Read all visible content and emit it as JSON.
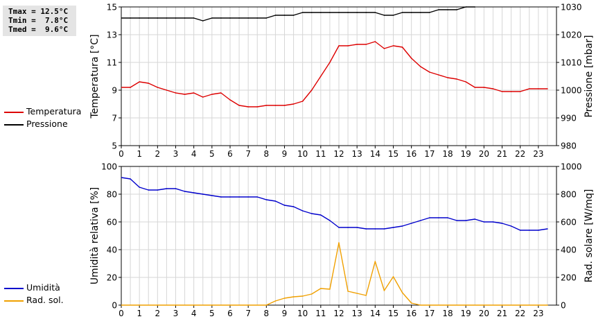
{
  "stats": {
    "tmax": "Tmax = 12.5°C",
    "tmin": "Tmin =  7.8°C",
    "tmed": "Tmed =  9.6°C"
  },
  "legend_top": [
    {
      "label": "Temperatura",
      "color": "#dd0000"
    },
    {
      "label": "Pressione",
      "color": "#000000"
    }
  ],
  "legend_bottom": [
    {
      "label": "Umidità",
      "color": "#0000cc"
    },
    {
      "label": "Rad. sol.",
      "color": "#f0a000"
    }
  ],
  "chart_data": [
    {
      "type": "line",
      "ylabel": "Temperatura [°C]",
      "y2label": "Pressione [mbar]",
      "xlim": [
        0,
        24
      ],
      "ylim": [
        5,
        15
      ],
      "y2lim": [
        980,
        1030
      ],
      "xticks": [
        "0",
        "1",
        "2",
        "3",
        "4",
        "5",
        "6",
        "7",
        "8",
        "9",
        "10",
        "11",
        "12",
        "13",
        "14",
        "15",
        "16",
        "17",
        "18",
        "19",
        "20",
        "21",
        "22",
        "23"
      ],
      "yticks": [
        "5",
        "7",
        "9",
        "11",
        "13",
        "15"
      ],
      "y2ticks": [
        "980",
        "990",
        "1000",
        "1010",
        "1020",
        "1030"
      ],
      "grid": true,
      "series": [
        {
          "name": "Temperatura",
          "axis": "left",
          "color": "#dd0000",
          "x": [
            0,
            0.5,
            1,
            1.5,
            2,
            2.5,
            3,
            3.5,
            4,
            4.5,
            5,
            5.5,
            6,
            6.5,
            7,
            7.5,
            8,
            8.5,
            9,
            9.5,
            10,
            10.5,
            11,
            11.5,
            12,
            12.5,
            13,
            13.5,
            14,
            14.5,
            15,
            15.5,
            16,
            16.5,
            17,
            17.5,
            18,
            18.5,
            19,
            19.5,
            20,
            20.5,
            21,
            21.5,
            22,
            22.5,
            23,
            23.5
          ],
          "y": [
            9.2,
            9.2,
            9.6,
            9.5,
            9.2,
            9.0,
            8.8,
            8.7,
            8.8,
            8.5,
            8.7,
            8.8,
            8.3,
            7.9,
            7.8,
            7.8,
            7.9,
            7.9,
            7.9,
            8.0,
            8.2,
            9.0,
            10.0,
            11.0,
            12.2,
            12.2,
            12.3,
            12.3,
            12.5,
            12.0,
            12.2,
            12.1,
            11.3,
            10.7,
            10.3,
            10.1,
            9.9,
            9.8,
            9.6,
            9.2,
            9.2,
            9.1,
            8.9,
            8.9,
            8.9,
            9.1,
            9.1,
            9.1
          ]
        },
        {
          "name": "Pressione",
          "axis": "right",
          "color": "#000000",
          "x": [
            0,
            0.5,
            1,
            1.5,
            2,
            2.5,
            3,
            3.5,
            4,
            4.5,
            5,
            5.5,
            6,
            6.5,
            7,
            7.5,
            8,
            8.5,
            9,
            9.5,
            10,
            10.5,
            11,
            11.5,
            12,
            12.5,
            13,
            13.5,
            14,
            14.5,
            15,
            15.5,
            16,
            16.5,
            17,
            17.5,
            18,
            18.5,
            19,
            19.5
          ],
          "y": [
            1026,
            1026,
            1026,
            1026,
            1026,
            1026,
            1026,
            1026,
            1026,
            1025,
            1026,
            1026,
            1026,
            1026,
            1026,
            1026,
            1026,
            1027,
            1027,
            1027,
            1028,
            1028,
            1028,
            1028,
            1028,
            1028,
            1028,
            1028,
            1028,
            1027,
            1027,
            1028,
            1028,
            1028,
            1028,
            1029,
            1029,
            1029,
            1030,
            1030
          ]
        }
      ]
    },
    {
      "type": "line",
      "ylabel": "Umidità relativa [%]",
      "y2label": "Rad. solare [W/mq]",
      "xlim": [
        0,
        24
      ],
      "ylim": [
        0,
        100
      ],
      "y2lim": [
        0,
        1000
      ],
      "xticks": [
        "0",
        "1",
        "2",
        "3",
        "4",
        "5",
        "6",
        "7",
        "8",
        "9",
        "10",
        "11",
        "12",
        "13",
        "14",
        "15",
        "16",
        "17",
        "18",
        "19",
        "20",
        "21",
        "22",
        "23"
      ],
      "yticks": [
        "0",
        "20",
        "40",
        "60",
        "80",
        "100"
      ],
      "y2ticks": [
        "0",
        "200",
        "400",
        "600",
        "800",
        "1000"
      ],
      "grid": true,
      "series": [
        {
          "name": "Umidità",
          "axis": "left",
          "color": "#0000cc",
          "x": [
            0,
            0.5,
            1,
            1.5,
            2,
            2.5,
            3,
            3.5,
            4,
            4.5,
            5,
            5.5,
            6,
            6.5,
            7,
            7.5,
            8,
            8.5,
            9,
            9.5,
            10,
            10.5,
            11,
            11.5,
            12,
            12.5,
            13,
            13.5,
            14,
            14.5,
            15,
            15.5,
            16,
            16.5,
            17,
            17.5,
            18,
            18.5,
            19,
            19.5,
            20,
            20.5,
            21,
            21.5,
            22,
            22.5,
            23,
            23.5
          ],
          "y": [
            92,
            91,
            85,
            83,
            83,
            84,
            84,
            82,
            81,
            80,
            79,
            78,
            78,
            78,
            78,
            78,
            76,
            75,
            72,
            71,
            68,
            66,
            65,
            61,
            56,
            56,
            56,
            55,
            55,
            55,
            56,
            57,
            59,
            61,
            63,
            63,
            63,
            61,
            61,
            62,
            60,
            60,
            59,
            57,
            54,
            54,
            54,
            55
          ]
        },
        {
          "name": "Rad. sol.",
          "axis": "right",
          "color": "#f0a000",
          "x": [
            0,
            1,
            2,
            3,
            4,
            5,
            6,
            7,
            8,
            8.5,
            9,
            9.5,
            10,
            10.5,
            11,
            11.5,
            12,
            12.5,
            13,
            13.5,
            14,
            14.5,
            15,
            15.5,
            16,
            16.5,
            17,
            18,
            19,
            20,
            21,
            22,
            23,
            23.5
          ],
          "y": [
            0,
            0,
            0,
            0,
            0,
            0,
            0,
            0,
            0,
            30,
            50,
            60,
            65,
            80,
            120,
            115,
            450,
            100,
            85,
            70,
            315,
            105,
            205,
            90,
            15,
            0,
            0,
            0,
            0,
            0,
            0,
            0,
            0,
            0
          ]
        }
      ]
    }
  ]
}
